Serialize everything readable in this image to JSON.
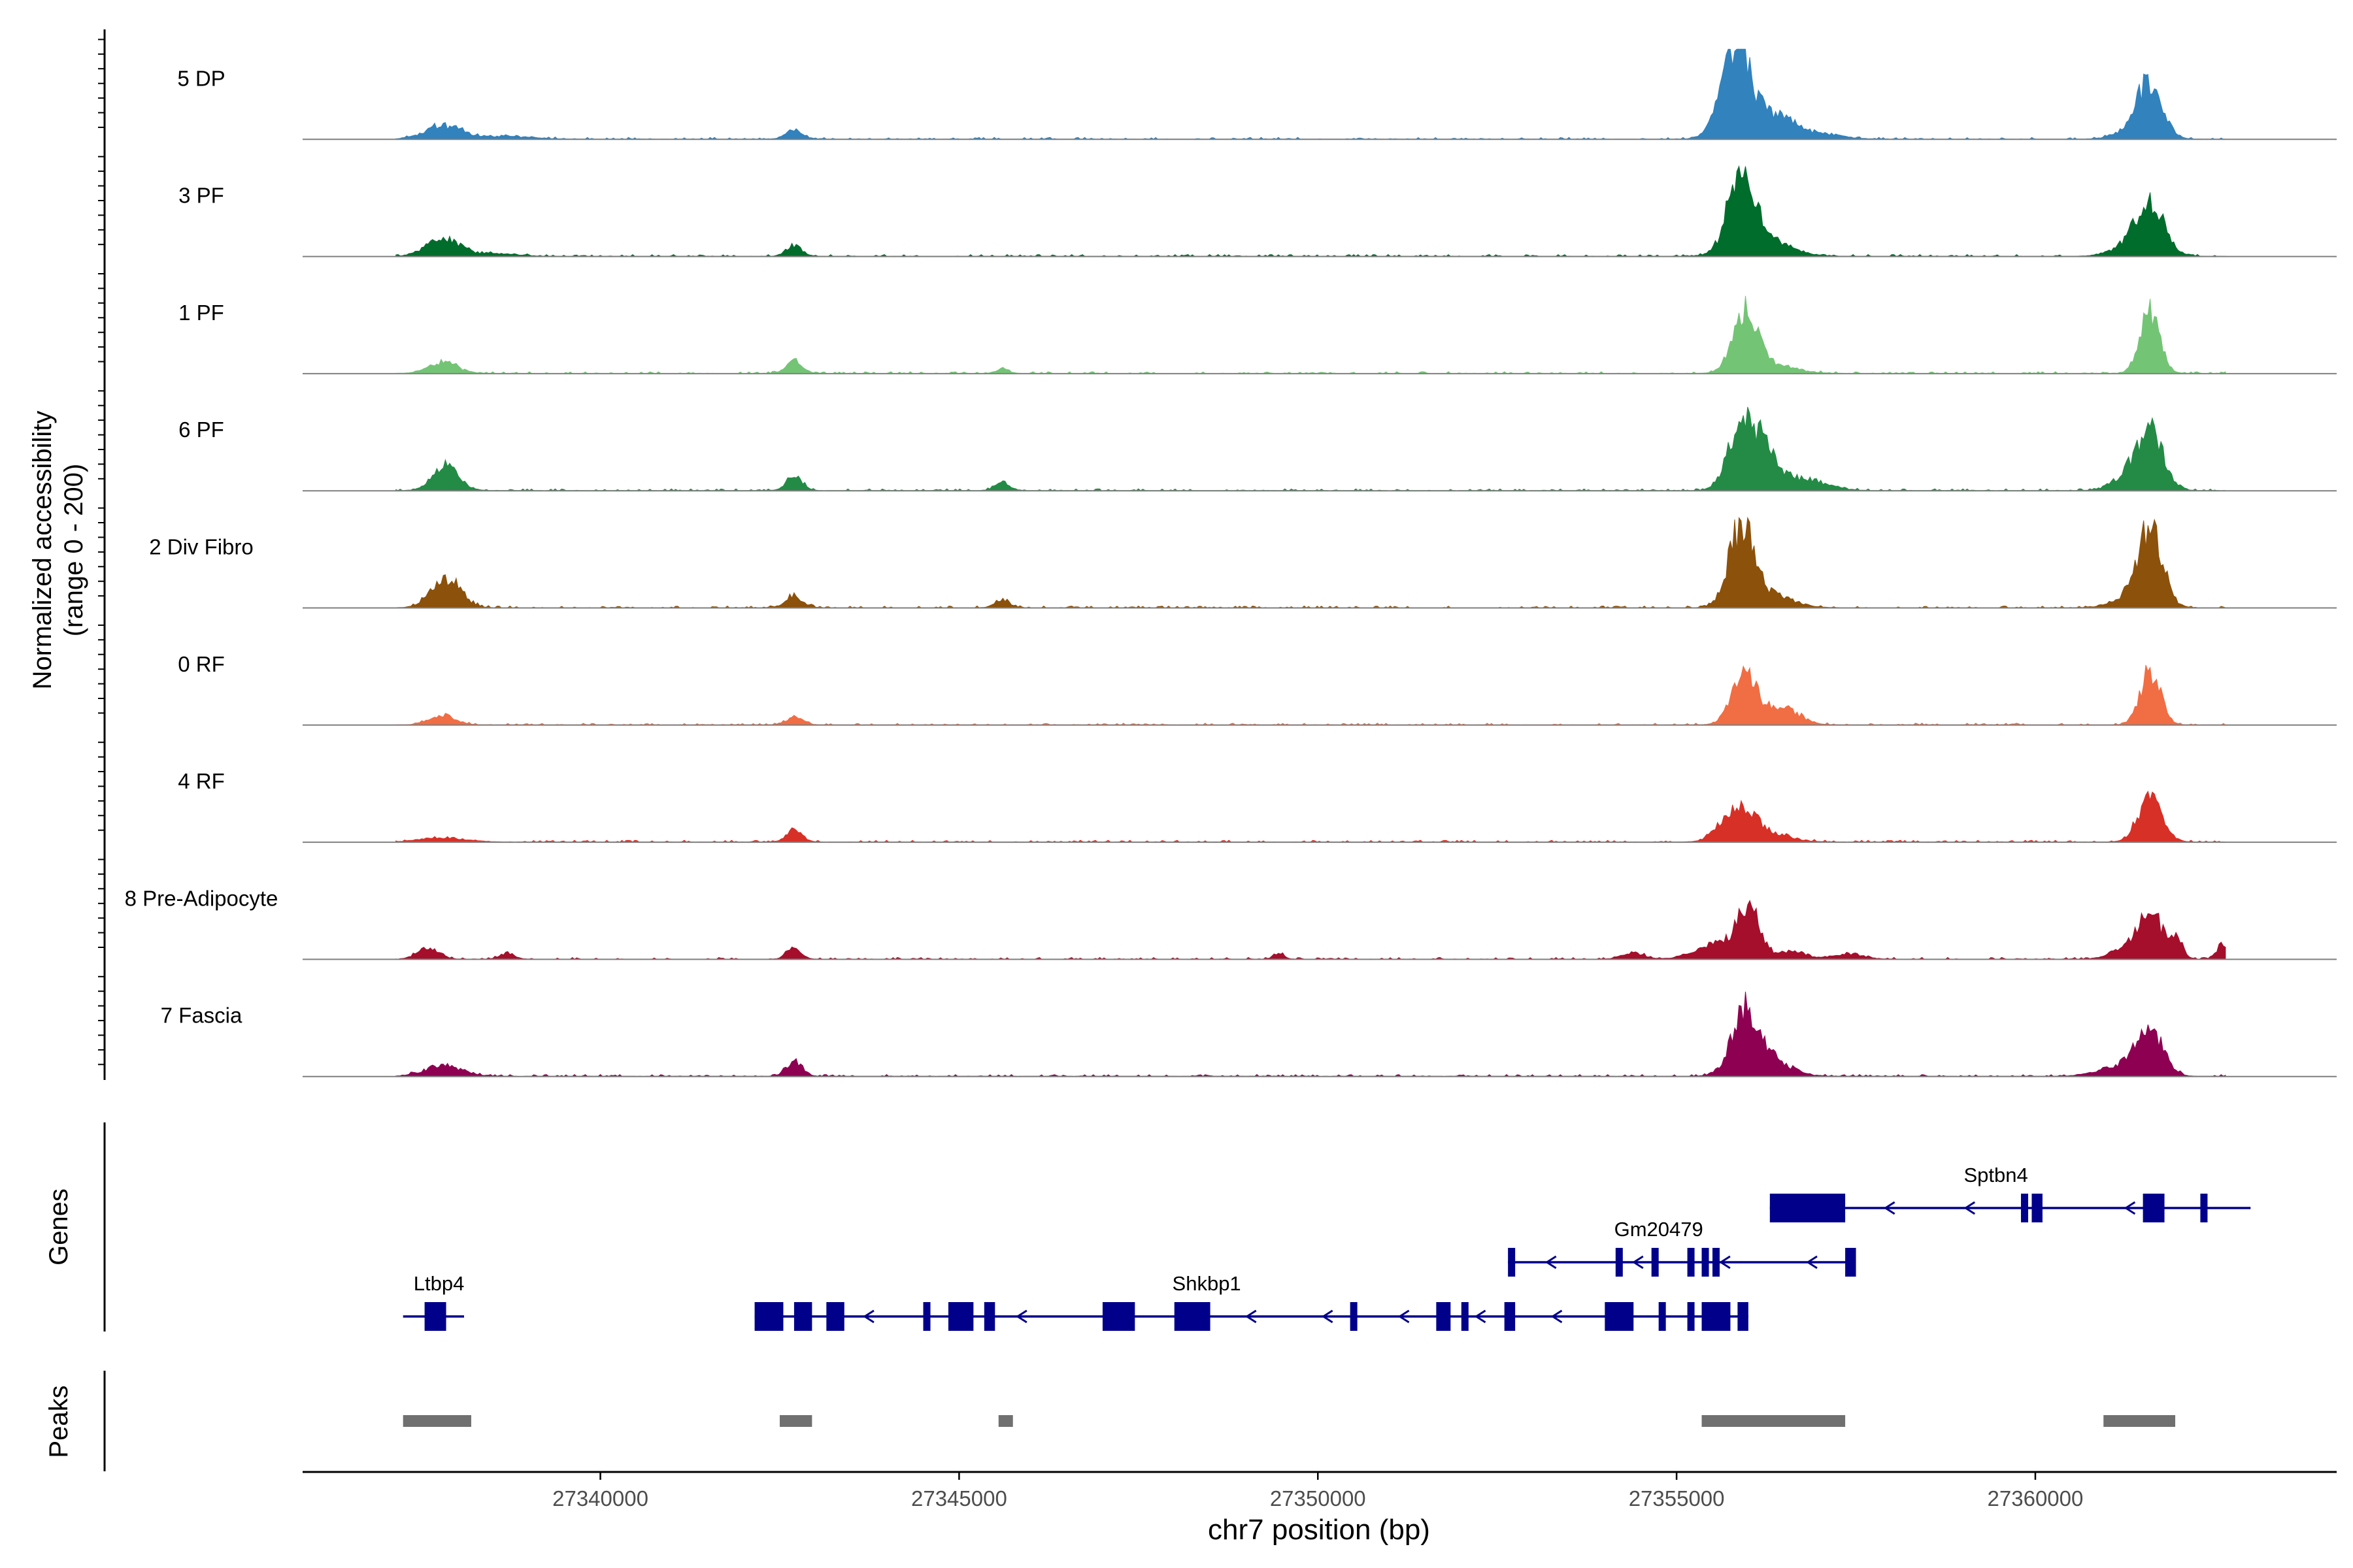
{
  "chart_data": {
    "type": "area",
    "title": "",
    "xlabel": "chr7 position (bp)",
    "ylabel_line1": "Normalized accessibility",
    "ylabel_line2": "(range 0 - 200)",
    "y_range": [
      0,
      200
    ],
    "x_range": [
      27335850,
      27364200
    ],
    "x_ticks": [
      27340000,
      27345000,
      27350000,
      27355000,
      27360000
    ],
    "x_tick_labels": [
      "27340000",
      "27345000",
      "27350000",
      "27355000",
      "27360000"
    ],
    "tracks": [
      {
        "name": "5 DP",
        "color": "#3182bd",
        "peaks": [
          [
            27337800,
            15,
            250
          ],
          [
            27338600,
            3,
            400
          ],
          [
            27342700,
            10,
            120
          ],
          [
            27355800,
            80,
            200
          ],
          [
            27356000,
            30,
            250
          ],
          [
            27356500,
            18,
            220
          ],
          [
            27357000,
            6,
            300
          ],
          [
            27361600,
            60,
            170
          ],
          [
            27361400,
            10,
            250
          ]
        ]
      },
      {
        "name": "3 PF",
        "color": "#006d2c",
        "peaks": [
          [
            27337800,
            20,
            220
          ],
          [
            27338500,
            3,
            300
          ],
          [
            27342700,
            12,
            110
          ],
          [
            27355900,
            95,
            170
          ],
          [
            27356200,
            20,
            350
          ],
          [
            27361600,
            55,
            200
          ],
          [
            27361300,
            10,
            250
          ]
        ]
      },
      {
        "name": "1 PF",
        "color": "#74c476",
        "peaks": [
          [
            27337800,
            13,
            200
          ],
          [
            27342700,
            15,
            110
          ],
          [
            27345600,
            6,
            80
          ],
          [
            27355950,
            70,
            170
          ],
          [
            27356400,
            8,
            300
          ],
          [
            27361600,
            68,
            140
          ]
        ]
      },
      {
        "name": "6 PF",
        "color": "#238b45",
        "peaks": [
          [
            27337850,
            28,
            180
          ],
          [
            27342700,
            17,
            110
          ],
          [
            27345600,
            10,
            100
          ],
          [
            27355900,
            70,
            180
          ],
          [
            27356200,
            40,
            220
          ],
          [
            27356800,
            12,
            300
          ],
          [
            27361600,
            62,
            190
          ],
          [
            27361300,
            15,
            220
          ]
        ]
      },
      {
        "name": "2 Div Fibro",
        "color": "#8c510a",
        "peaks": [
          [
            27337850,
            34,
            200
          ],
          [
            27342700,
            13,
            120
          ],
          [
            27345600,
            10,
            100
          ],
          [
            27355900,
            88,
            170
          ],
          [
            27356300,
            15,
            300
          ],
          [
            27361600,
            88,
            170
          ],
          [
            27361300,
            10,
            250
          ]
        ]
      },
      {
        "name": "0 RF",
        "color": "#f16d43",
        "peaks": [
          [
            27337800,
            11,
            180
          ],
          [
            27342700,
            8,
            120
          ],
          [
            27355950,
            54,
            180
          ],
          [
            27356500,
            18,
            220
          ],
          [
            27361600,
            62,
            140
          ]
        ]
      },
      {
        "name": "4 RF",
        "color": "#d73027",
        "peaks": [
          [
            27337800,
            5,
            300
          ],
          [
            27342700,
            14,
            110
          ],
          [
            27355850,
            41,
            220
          ],
          [
            27356300,
            8,
            300
          ],
          [
            27361600,
            48,
            170
          ]
        ]
      },
      {
        "name": "8 Pre-Adipocyte",
        "color": "#a50f2c",
        "peaks": [
          [
            27337600,
            12,
            150
          ],
          [
            27338700,
            7,
            100
          ],
          [
            27342700,
            12,
            100
          ],
          [
            27349450,
            7,
            70
          ],
          [
            27354400,
            7,
            150
          ],
          [
            27356000,
            55,
            150
          ],
          [
            27355600,
            18,
            300
          ],
          [
            27356600,
            9,
            200
          ],
          [
            27357400,
            6,
            200
          ],
          [
            27361600,
            54,
            150
          ],
          [
            27361300,
            14,
            220
          ],
          [
            27361950,
            22,
            100
          ],
          [
            27362600,
            16,
            80
          ]
        ]
      },
      {
        "name": "7 Fascia",
        "color": "#8e0152",
        "peaks": [
          [
            27337800,
            12,
            250
          ],
          [
            27342700,
            17,
            110
          ],
          [
            27355950,
            60,
            170
          ],
          [
            27356200,
            25,
            300
          ],
          [
            27361600,
            50,
            180
          ],
          [
            27361200,
            12,
            300
          ]
        ]
      }
    ],
    "genes_label": "Genes",
    "genes": [
      {
        "name": "Ltbp4",
        "label_at": 27337750,
        "row": 2,
        "start": 27337250,
        "end": 27338100,
        "exons": [
          [
            27337550,
            27337850
          ]
        ],
        "strand": "-"
      },
      {
        "name": "Shkbp1",
        "label_at": 27348450,
        "row": 2,
        "start": 27342150,
        "end": 27356000,
        "exons": [
          [
            27342150,
            27342550
          ],
          [
            27342700,
            27342950
          ],
          [
            27343150,
            27343400
          ],
          [
            27344500,
            27344600
          ],
          [
            27344850,
            27345200
          ],
          [
            27345350,
            27345500
          ],
          [
            27347000,
            27347450
          ],
          [
            27348000,
            27348500
          ],
          [
            27350450,
            27350550
          ],
          [
            27351650,
            27351850
          ],
          [
            27352000,
            27352100
          ],
          [
            27352600,
            27352750
          ],
          [
            27354000,
            27354400
          ],
          [
            27354750,
            27354800
          ],
          [
            27355150,
            27355200
          ],
          [
            27355350,
            27355750
          ],
          [
            27355850,
            27356000
          ]
        ],
        "strand": "-"
      },
      {
        "name": "Gm20479",
        "label_at": 27354750,
        "row": 1,
        "start": 27352650,
        "end": 27357500,
        "exons": [
          [
            27352650,
            27352750
          ],
          [
            27354150,
            27354250
          ],
          [
            27354650,
            27354700
          ],
          [
            27355150,
            27355200
          ],
          [
            27355350,
            27355450
          ],
          [
            27355500,
            27355550
          ],
          [
            27357350,
            27357500
          ]
        ],
        "strand": "-"
      },
      {
        "name": "Sptbn4",
        "label_at": 27359450,
        "row": 0,
        "start": 27356300,
        "end": 27363000,
        "exons": [
          [
            27356300,
            27357350
          ],
          [
            27359800,
            27359850
          ],
          [
            27359950,
            27360100
          ],
          [
            27361500,
            27361800
          ],
          [
            27362300,
            27362400
          ]
        ],
        "strand": "-"
      }
    ],
    "peaks_label": "Peaks",
    "peak_regions": [
      [
        27337250,
        27338200
      ],
      [
        27342500,
        27342950
      ],
      [
        27345550,
        27345750
      ],
      [
        27355350,
        27357350
      ],
      [
        27360950,
        27361950
      ]
    ]
  }
}
